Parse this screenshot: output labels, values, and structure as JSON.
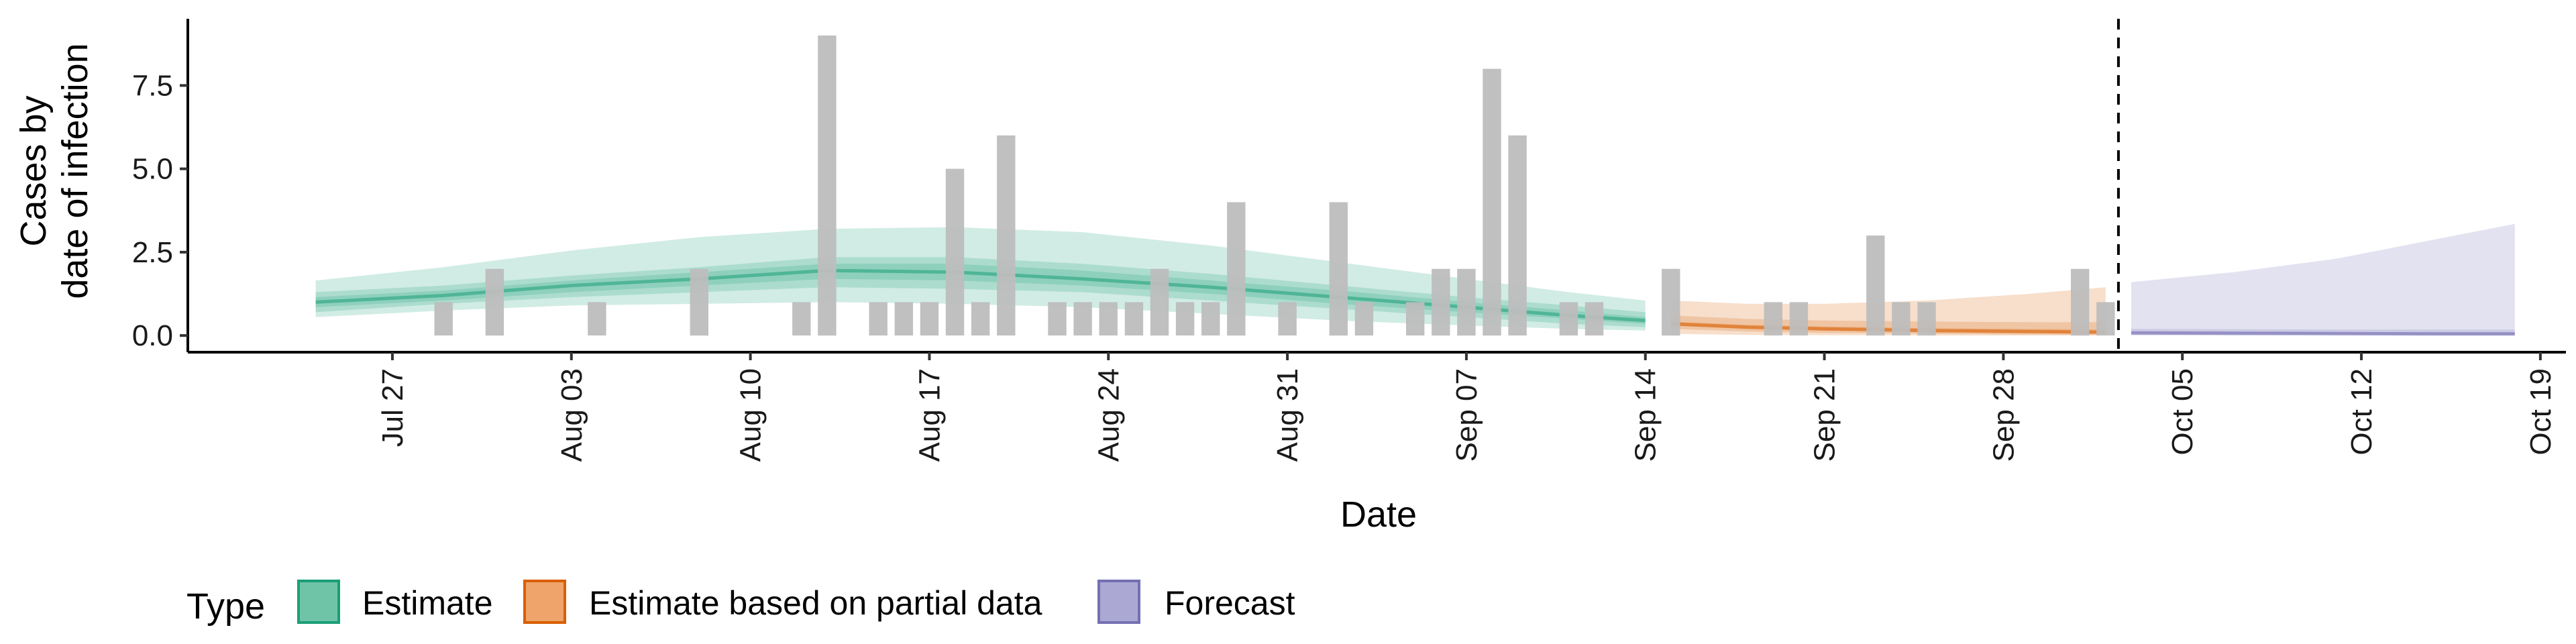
{
  "chart_data": {
    "type": "bar",
    "ylabel": [
      "Cases by",
      "date of infection"
    ],
    "xlabel": "Date",
    "ylim": [
      -0.5,
      9.5
    ],
    "y_ticks": [
      0.0,
      2.5,
      5.0,
      7.5
    ],
    "y_tick_labels": [
      "0.0",
      "2.5",
      "5.0",
      "7.5"
    ],
    "x_range": [
      "2020-07-19",
      "2020-10-20"
    ],
    "x_ticks": [
      "2020-07-27",
      "2020-08-03",
      "2020-08-10",
      "2020-08-17",
      "2020-08-24",
      "2020-08-31",
      "2020-09-07",
      "2020-09-14",
      "2020-09-21",
      "2020-09-28",
      "2020-10-05",
      "2020-10-12",
      "2020-10-19"
    ],
    "x_tick_labels": [
      "Jul 27",
      "Aug 03",
      "Aug 10",
      "Aug 17",
      "Aug 24",
      "Aug 31",
      "Sep 07",
      "Sep 14",
      "Sep 21",
      "Sep 28",
      "Oct 05",
      "Oct 12",
      "Oct 19"
    ],
    "forecast_cutoff": "2020-10-02",
    "bars": {
      "color": "#bdbdbd",
      "dates": [
        "2020-07-29",
        "2020-07-31",
        "2020-08-04",
        "2020-08-08",
        "2020-08-12",
        "2020-08-13",
        "2020-08-15",
        "2020-08-16",
        "2020-08-17",
        "2020-08-18",
        "2020-08-19",
        "2020-08-20",
        "2020-08-22",
        "2020-08-23",
        "2020-08-24",
        "2020-08-25",
        "2020-08-26",
        "2020-08-27",
        "2020-08-28",
        "2020-08-29",
        "2020-08-31",
        "2020-09-02",
        "2020-09-03",
        "2020-09-05",
        "2020-09-06",
        "2020-09-07",
        "2020-09-08",
        "2020-09-09",
        "2020-09-11",
        "2020-09-12",
        "2020-09-15",
        "2020-09-19",
        "2020-09-20",
        "2020-09-23",
        "2020-09-24",
        "2020-09-25",
        "2020-10-01",
        "2020-10-02"
      ],
      "values": [
        1,
        2,
        1,
        2,
        1,
        9,
        1,
        1,
        1,
        5,
        1,
        6,
        1,
        1,
        1,
        1,
        2,
        1,
        1,
        4,
        1,
        4,
        1,
        1,
        2,
        2,
        8,
        6,
        1,
        1,
        2,
        1,
        1,
        3,
        1,
        1,
        2,
        1
      ]
    },
    "estimate_band": {
      "type": "Estimate",
      "color": "#1b9e77",
      "dates": [
        "2020-07-24",
        "2020-07-29",
        "2020-08-03",
        "2020-08-08",
        "2020-08-13",
        "2020-08-18",
        "2020-08-23",
        "2020-08-28",
        "2020-09-02",
        "2020-09-07",
        "2020-09-11",
        "2020-09-14"
      ],
      "median": [
        1.0,
        1.2,
        1.5,
        1.7,
        1.95,
        1.9,
        1.7,
        1.45,
        1.15,
        0.85,
        0.6,
        0.45
      ],
      "lower_20": [
        0.85,
        1.05,
        1.3,
        1.5,
        1.7,
        1.65,
        1.5,
        1.25,
        0.95,
        0.7,
        0.5,
        0.35
      ],
      "upper_20": [
        1.15,
        1.35,
        1.65,
        1.9,
        2.15,
        2.15,
        1.95,
        1.65,
        1.35,
        1.0,
        0.75,
        0.55
      ],
      "lower_50": [
        0.7,
        0.95,
        1.15,
        1.3,
        1.45,
        1.4,
        1.3,
        1.05,
        0.8,
        0.55,
        0.35,
        0.25
      ],
      "upper_50": [
        1.3,
        1.5,
        1.8,
        2.05,
        2.35,
        2.35,
        2.15,
        1.85,
        1.5,
        1.15,
        0.9,
        0.7
      ],
      "lower_90": [
        0.55,
        0.75,
        0.9,
        0.95,
        1.0,
        0.95,
        0.85,
        0.65,
        0.45,
        0.3,
        0.2,
        0.15
      ],
      "upper_90": [
        1.65,
        2.05,
        2.55,
        2.95,
        3.2,
        3.25,
        3.1,
        2.7,
        2.2,
        1.7,
        1.3,
        1.05
      ]
    },
    "partial_band": {
      "type": "Estimate based on partial data",
      "color": "#d95f02",
      "dates": [
        "2020-09-15",
        "2020-09-18",
        "2020-09-21",
        "2020-09-25",
        "2020-09-29",
        "2020-10-02"
      ],
      "median": [
        0.35,
        0.25,
        0.2,
        0.15,
        0.12,
        0.1
      ],
      "lower_20": [
        0.3,
        0.2,
        0.15,
        0.1,
        0.08,
        0.06
      ],
      "upper_20": [
        0.42,
        0.32,
        0.27,
        0.22,
        0.2,
        0.18
      ],
      "lower_50": [
        0.2,
        0.12,
        0.08,
        0.05,
        0.03,
        0.02
      ],
      "upper_50": [
        0.6,
        0.5,
        0.45,
        0.42,
        0.4,
        0.4
      ],
      "lower_90": [
        0.05,
        0.02,
        0.01,
        0.0,
        0.0,
        0.0
      ],
      "upper_90": [
        1.05,
        0.95,
        0.95,
        1.05,
        1.25,
        1.45
      ]
    },
    "forecast_band": {
      "type": "Forecast",
      "color": "#7570b3",
      "dates": [
        "2020-10-03",
        "2020-10-07",
        "2020-10-11",
        "2020-10-15",
        "2020-10-18"
      ],
      "median": [
        0.08,
        0.07,
        0.06,
        0.05,
        0.05
      ],
      "lower_20": [
        0.06,
        0.05,
        0.04,
        0.03,
        0.03
      ],
      "upper_20": [
        0.12,
        0.11,
        0.1,
        0.1,
        0.1
      ],
      "lower_50": [
        0.03,
        0.02,
        0.02,
        0.01,
        0.01
      ],
      "upper_50": [
        0.2,
        0.19,
        0.18,
        0.18,
        0.18
      ],
      "lower_90": [
        0.0,
        0.0,
        0.0,
        0.0,
        0.0
      ],
      "upper_90": [
        1.6,
        1.9,
        2.3,
        2.9,
        3.35
      ]
    },
    "legend": {
      "title": "Type",
      "position": "bottom",
      "items": [
        {
          "label": "Estimate",
          "fill": "#6fc4a7",
          "stroke": "#1b9e77"
        },
        {
          "label": "Estimate based on partial data",
          "fill": "#eea46a",
          "stroke": "#d95f02"
        },
        {
          "label": "Forecast",
          "fill": "#aba8d3",
          "stroke": "#7570b3"
        }
      ]
    }
  }
}
